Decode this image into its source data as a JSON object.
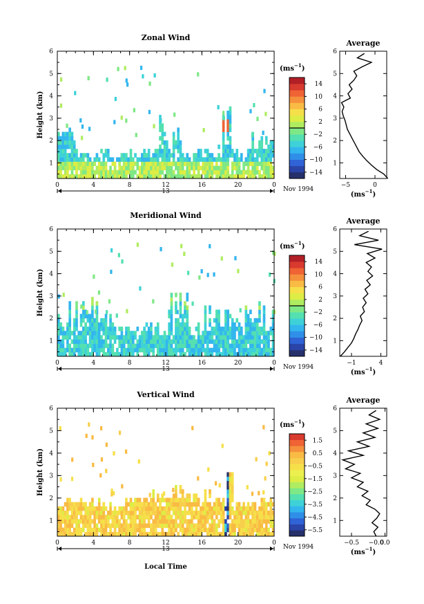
{
  "chart_data": [
    {
      "type": "heatmap",
      "title": "Zonal Wind",
      "ylabel": "Height (km)",
      "ylim": [
        0.3,
        6
      ],
      "yticks": [
        "1",
        "2",
        "3",
        "4",
        "5",
        "6"
      ],
      "xlim": [
        0,
        24
      ],
      "xticks": [
        "0",
        "4",
        "8",
        "12",
        "16",
        "20",
        "0"
      ],
      "date_label": "13",
      "date_suffix": "Nov 1994",
      "colorbar": {
        "unit": "(ms",
        "unit_exp": "−1",
        "unit_close": ")",
        "ticks": [
          "14",
          "10",
          "6",
          "2",
          "−2",
          "−6",
          "−10",
          "−14"
        ],
        "range": [
          -16,
          16
        ]
      },
      "average_profile": {
        "title": "Average",
        "xlabel": "(ms",
        "xlabel_exp": "−1",
        "xlabel_close": ")",
        "xlim": [
          -6,
          2
        ],
        "xticks": [
          "−5",
          "0"
        ],
        "yticks": [
          "1",
          "2",
          "3",
          "4",
          "5",
          "6"
        ],
        "height": [
          0.3,
          0.5,
          0.7,
          0.9,
          1.1,
          1.3,
          1.5,
          1.7,
          1.9,
          2.1,
          2.3,
          2.5,
          2.7,
          2.9,
          3.1,
          3.3,
          3.5,
          3.7,
          3.9,
          4.1,
          4.3,
          4.5,
          4.7,
          4.9,
          5.1,
          5.3,
          5.5,
          5.7,
          5.9
        ],
        "value": [
          2.2,
          1.5,
          0.3,
          -0.6,
          -1.4,
          -2.1,
          -2.7,
          -3.1,
          -3.5,
          -3.9,
          -4.3,
          -4.7,
          -4.9,
          -5.1,
          -5.4,
          -5.6,
          -5.3,
          -5.7,
          -4.2,
          -4.6,
          -3.9,
          -4.4,
          -3.6,
          -3.1,
          -3.6,
          -2.2,
          -0.6,
          -3.0,
          -1.8
        ]
      }
    },
    {
      "type": "heatmap",
      "title": "Meridional Wind",
      "ylabel": "Height (km)",
      "ylim": [
        0.3,
        6
      ],
      "yticks": [
        "1",
        "2",
        "3",
        "4",
        "5",
        "6"
      ],
      "xlim": [
        0,
        24
      ],
      "xticks": [
        "0",
        "4",
        "8",
        "12",
        "16",
        "20",
        "0"
      ],
      "date_label": "13",
      "date_suffix": "Nov 1994",
      "colorbar": {
        "unit": "(ms",
        "unit_exp": "−1",
        "unit_close": ")",
        "ticks": [
          "14",
          "10",
          "6",
          "2",
          "−2",
          "−6",
          "−10",
          "−14"
        ],
        "range": [
          -16,
          16
        ]
      },
      "average_profile": {
        "title": "Average",
        "xlabel": "(ms",
        "xlabel_exp": "−1",
        "xlabel_close": ")",
        "xlim": [
          -3,
          5
        ],
        "xticks": [
          "−1",
          "4"
        ],
        "yticks": [
          "1",
          "2",
          "3",
          "4",
          "5",
          "6"
        ],
        "height": [
          0.3,
          0.5,
          0.7,
          0.9,
          1.1,
          1.3,
          1.5,
          1.7,
          1.9,
          2.1,
          2.3,
          2.5,
          2.7,
          2.9,
          3.1,
          3.3,
          3.5,
          3.7,
          3.9,
          4.1,
          4.3,
          4.5,
          4.7,
          4.9,
          5.1,
          5.3,
          5.5,
          5.7,
          5.9
        ],
        "value": [
          -2.9,
          -2.2,
          -1.6,
          -1.0,
          -0.6,
          -0.3,
          0.1,
          0.4,
          0.8,
          0.5,
          1.2,
          0.9,
          1.5,
          1.0,
          1.8,
          1.3,
          2.2,
          1.6,
          2.6,
          1.8,
          2.4,
          1.5,
          3.0,
          1.7,
          4.2,
          -0.5,
          3.6,
          0.4,
          1.9
        ]
      }
    },
    {
      "type": "heatmap",
      "title": "Vertical Wind",
      "ylabel": "Height (km)",
      "xlabel": "Local Time",
      "ylim": [
        0.3,
        6
      ],
      "yticks": [
        "1",
        "2",
        "3",
        "4",
        "5",
        "6"
      ],
      "xlim": [
        0,
        24
      ],
      "xticks": [
        "0",
        "4",
        "8",
        "12",
        "16",
        "20",
        "0"
      ],
      "date_label": "13",
      "date_suffix": "Nov 1994",
      "colorbar": {
        "unit": "(ms",
        "unit_exp": "−1",
        "unit_close": ")",
        "ticks": [
          "1.5",
          "0.5",
          "−0.5",
          "−1.5",
          "−2.5",
          "−3.5",
          "−4.5",
          "−5.5"
        ],
        "range": [
          -6,
          2
        ]
      },
      "average_profile": {
        "title": "Average",
        "xlabel": "(ms",
        "xlabel_exp": "−1",
        "xlabel_close": ")",
        "xlim": [
          -0.7,
          0.1
        ],
        "xticks": [
          "−0.5",
          "−0.0",
          "0.0"
        ],
        "yticks": [
          "1",
          "2",
          "3",
          "4",
          "5",
          "6"
        ],
        "height": [
          0.3,
          0.5,
          0.7,
          0.9,
          1.1,
          1.3,
          1.5,
          1.7,
          1.9,
          2.1,
          2.3,
          2.5,
          2.7,
          2.9,
          3.1,
          3.3,
          3.5,
          3.7,
          3.9,
          4.1,
          4.3,
          4.5,
          4.7,
          4.9,
          5.1,
          5.3,
          5.5,
          5.7,
          5.9
        ],
        "value": [
          -0.08,
          -0.12,
          -0.05,
          -0.15,
          -0.07,
          -0.02,
          -0.1,
          -0.25,
          -0.18,
          -0.32,
          -0.22,
          -0.4,
          -0.3,
          -0.5,
          -0.35,
          -0.6,
          -0.45,
          -0.65,
          -0.3,
          -0.55,
          -0.2,
          -0.4,
          -0.1,
          -0.3,
          -0.05,
          -0.25,
          -0.02,
          -0.2,
          -0.08
        ]
      }
    }
  ]
}
